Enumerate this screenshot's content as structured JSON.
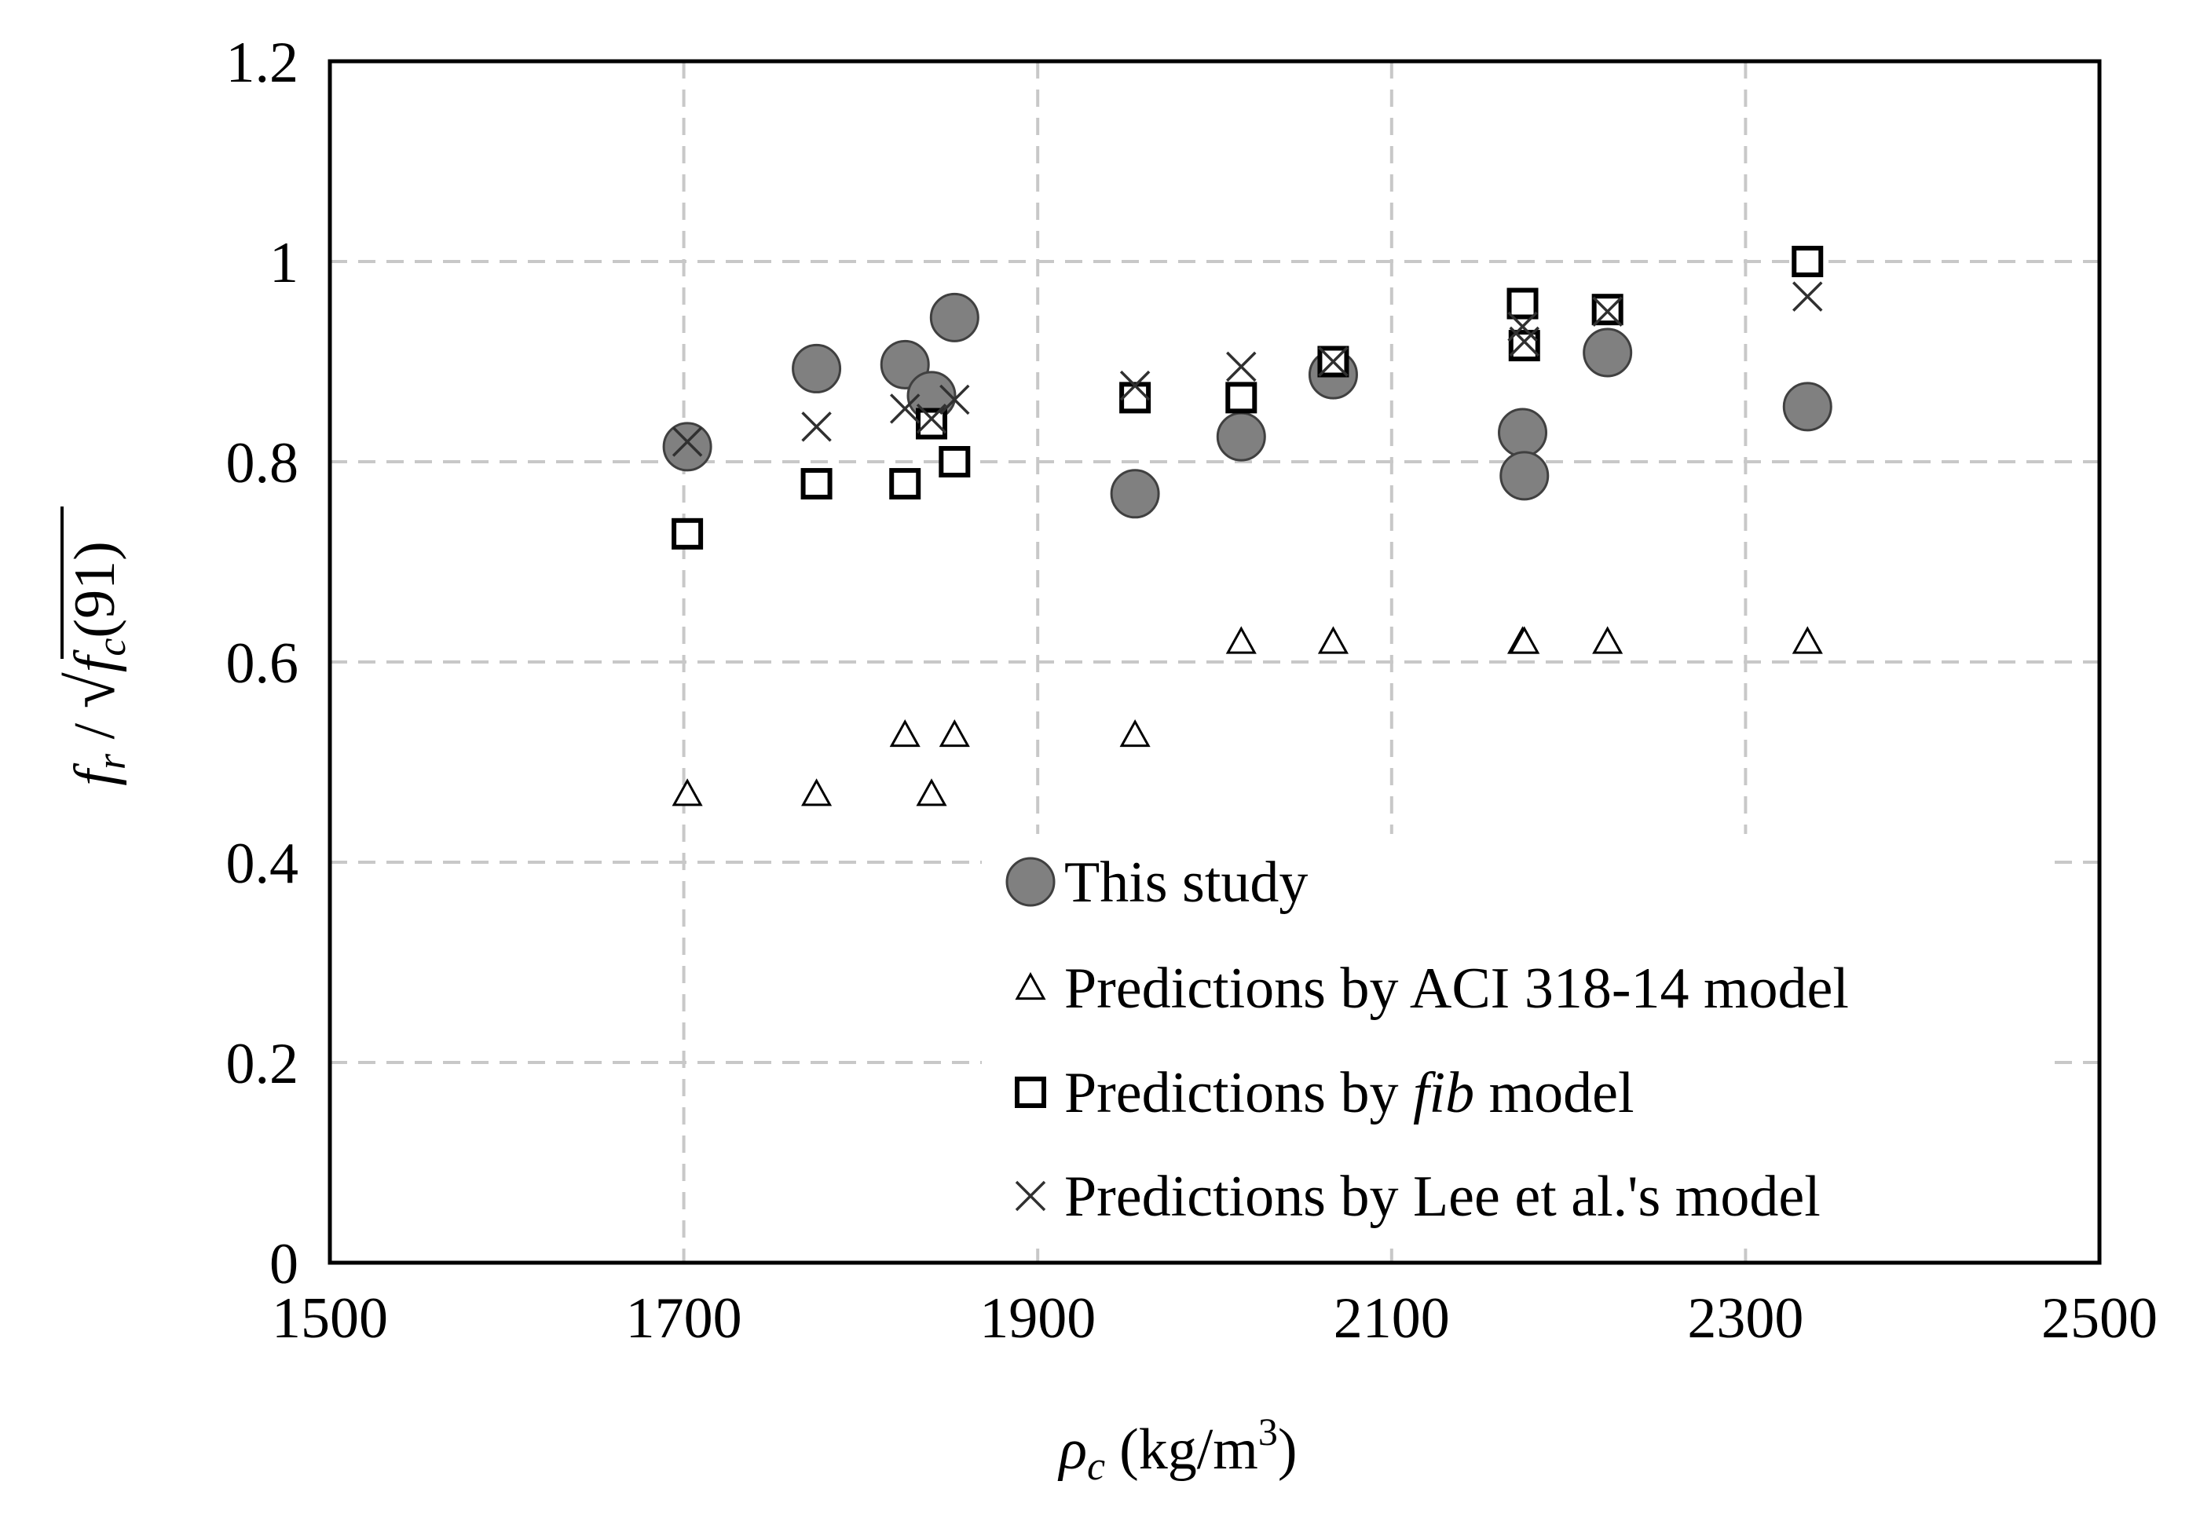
{
  "chart_data": {
    "type": "scatter",
    "title": "",
    "xlabel": "ρc (kg/m3)",
    "xlabel_parts": {
      "symbol": "ρ",
      "sub": "c",
      "unit": "(kg/m",
      "sup": "3",
      "close": ")"
    },
    "ylabel": "fr / √fc(91)",
    "ylabel_parts": {
      "f1": "f",
      "sub1": "r",
      "slash": " / ",
      "root": "√",
      "f2": "f",
      "sub2": "c",
      "tail": "(91)"
    },
    "xlim": [
      1500,
      2500
    ],
    "ylim": [
      0,
      1.2
    ],
    "x_ticks": [
      1500,
      1700,
      1900,
      2100,
      2300,
      2500
    ],
    "x_tick_labels": [
      "1500",
      "1700",
      "1900",
      "2100",
      "2300",
      "2500"
    ],
    "y_ticks": [
      0,
      0.2,
      0.4,
      0.6,
      0.8,
      1,
      1.2
    ],
    "y_tick_labels": [
      "0",
      "0.2",
      "0.4",
      "0.6",
      "0.8",
      "1",
      "1.2"
    ],
    "grid": true,
    "legend_position": "bottom-right",
    "series": [
      {
        "name": "This study",
        "marker": "circle",
        "color": "#808080",
        "points": [
          [
            1702,
            0.815
          ],
          [
            1775,
            0.893
          ],
          [
            1825,
            0.897
          ],
          [
            1840,
            0.866
          ],
          [
            1853,
            0.944
          ],
          [
            1955,
            0.768
          ],
          [
            2015,
            0.825
          ],
          [
            2067,
            0.887
          ],
          [
            2174,
            0.829
          ],
          [
            2175,
            0.786
          ],
          [
            2222,
            0.909
          ],
          [
            2335,
            0.855
          ]
        ]
      },
      {
        "name": "Predictions by ACI 318-14 model",
        "marker": "triangle",
        "color": "#ffffff",
        "points": [
          [
            1702,
            0.468
          ],
          [
            1775,
            0.468
          ],
          [
            1825,
            0.527
          ],
          [
            1840,
            0.468
          ],
          [
            1853,
            0.527
          ],
          [
            1955,
            0.527
          ],
          [
            2015,
            0.62
          ],
          [
            2067,
            0.62
          ],
          [
            2174,
            0.62
          ],
          [
            2175,
            0.62
          ],
          [
            2222,
            0.62
          ],
          [
            2335,
            0.62
          ]
        ]
      },
      {
        "name": "Predictions by fib model",
        "name_parts": [
          "Predictions by ",
          "fib",
          " model"
        ],
        "marker": "square",
        "color": "#ffffff",
        "points": [
          [
            1702,
            0.728
          ],
          [
            1775,
            0.778
          ],
          [
            1825,
            0.778
          ],
          [
            1840,
            0.838
          ],
          [
            1853,
            0.8
          ],
          [
            1955,
            0.864
          ],
          [
            2015,
            0.864
          ],
          [
            2067,
            0.9
          ],
          [
            2174,
            0.958
          ],
          [
            2175,
            0.916
          ],
          [
            2222,
            0.952
          ],
          [
            2335,
            1.0
          ]
        ]
      },
      {
        "name": "Predictions by Lee et al.'s model",
        "marker": "x",
        "color": "#303030",
        "points": [
          [
            1702,
            0.82
          ],
          [
            1775,
            0.835
          ],
          [
            1825,
            0.853
          ],
          [
            1840,
            0.843
          ],
          [
            1853,
            0.862
          ],
          [
            1955,
            0.876
          ],
          [
            2015,
            0.895
          ],
          [
            2067,
            0.9
          ],
          [
            2174,
            0.935
          ],
          [
            2175,
            0.92
          ],
          [
            2222,
            0.95
          ],
          [
            2335,
            0.965
          ]
        ]
      }
    ]
  }
}
